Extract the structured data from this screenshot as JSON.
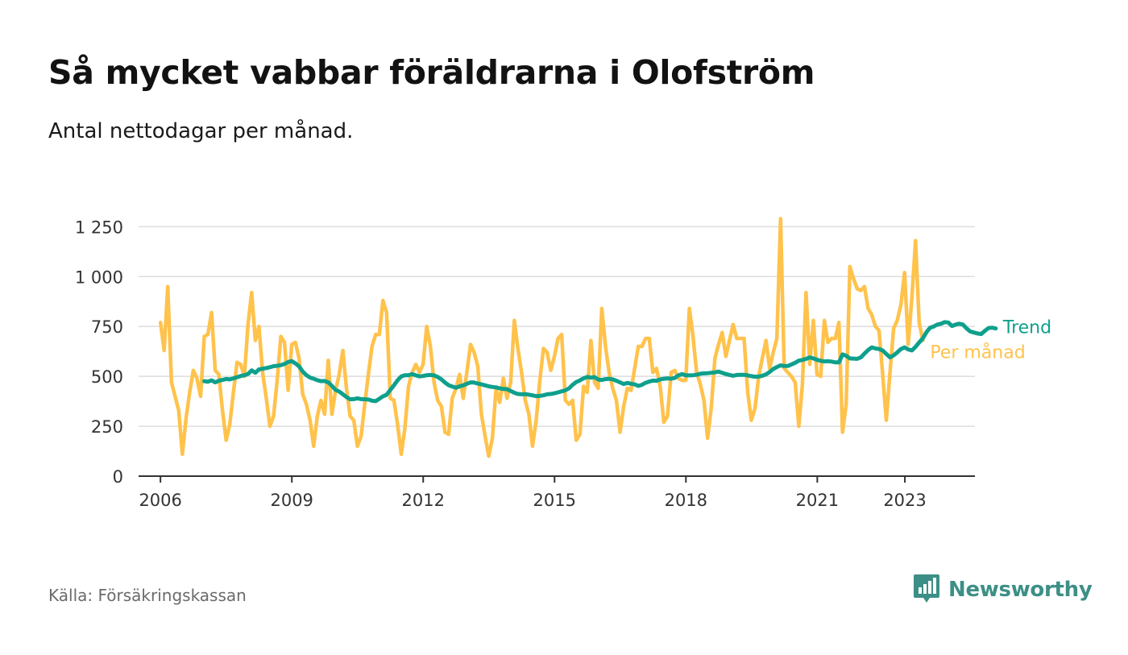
{
  "header": {
    "title": "Så mycket vabbar föräldrarna i Olofström",
    "subtitle": "Antal nettodagar per månad."
  },
  "footer": {
    "source": "Källa: Försäkringskassan",
    "brand": "Newsworthy"
  },
  "colors": {
    "monthly": "#FFC24B",
    "trend": "#0EA08C",
    "grid": "#DDDDDD",
    "axis": "#333333",
    "brand": "#3C8F86"
  },
  "chart_data": {
    "type": "line",
    "title": "Så mycket vabbar föräldrarna i Olofström",
    "subtitle": "Antal nettodagar per månad.",
    "xlabel": "",
    "ylabel": "",
    "xlim": [
      2005.5,
      2024.6
    ],
    "ylim": [
      0,
      1300
    ],
    "x_ticks": [
      {
        "value": 2006,
        "label": "2006"
      },
      {
        "value": 2009,
        "label": "2009"
      },
      {
        "value": 2012,
        "label": "2012"
      },
      {
        "value": 2015,
        "label": "2015"
      },
      {
        "value": 2018,
        "label": "2018"
      },
      {
        "value": 2021,
        "label": "2021"
      },
      {
        "value": 2023,
        "label": "2023"
      }
    ],
    "y_ticks": [
      {
        "value": 0,
        "label": "0"
      },
      {
        "value": 250,
        "label": "250"
      },
      {
        "value": 500,
        "label": "500"
      },
      {
        "value": 750,
        "label": "750"
      },
      {
        "value": 1000,
        "label": "1 000"
      },
      {
        "value": 1250,
        "label": "1 250"
      }
    ],
    "grid": true,
    "legend": "inline-end",
    "series": [
      {
        "name": "Per månad",
        "start": 2006.0,
        "step": 0.0833,
        "values": [
          770,
          630,
          950,
          470,
          400,
          330,
          110,
          290,
          420,
          530,
          490,
          400,
          700,
          710,
          820,
          530,
          510,
          330,
          180,
          260,
          420,
          570,
          560,
          500,
          760,
          920,
          680,
          750,
          520,
          390,
          250,
          300,
          480,
          700,
          670,
          430,
          660,
          670,
          590,
          410,
          360,
          280,
          150,
          300,
          380,
          310,
          580,
          310,
          430,
          510,
          630,
          440,
          300,
          280,
          150,
          200,
          360,
          510,
          650,
          710,
          710,
          880,
          820,
          390,
          380,
          260,
          110,
          240,
          450,
          520,
          560,
          520,
          560,
          750,
          650,
          470,
          380,
          350,
          220,
          210,
          390,
          440,
          510,
          390,
          520,
          660,
          620,
          550,
          310,
          200,
          100,
          190,
          440,
          370,
          490,
          390,
          470,
          780,
          640,
          520,
          380,
          310,
          150,
          280,
          480,
          640,
          620,
          530,
          600,
          690,
          710,
          380,
          360,
          380,
          180,
          210,
          450,
          420,
          680,
          470,
          440,
          840,
          650,
          520,
          440,
          380,
          220,
          350,
          440,
          430,
          540,
          650,
          650,
          690,
          690,
          520,
          540,
          450,
          270,
          300,
          520,
          530,
          490,
          480,
          480,
          840,
          700,
          520,
          460,
          380,
          190,
          340,
          590,
          660,
          720,
          600,
          680,
          760,
          690,
          690,
          690,
          420,
          280,
          340,
          500,
          590,
          680,
          540,
          620,
          690,
          1290,
          540,
          520,
          500,
          470,
          250,
          460,
          920,
          560,
          780,
          510,
          500,
          780,
          670,
          690,
          690,
          770,
          220,
          360,
          1050,
          990,
          940,
          930,
          950,
          840,
          810,
          750,
          730,
          510,
          280,
          520,
          740,
          780,
          860,
          1020,
          660,
          890,
          1180,
          770,
          680
        ]
      },
      {
        "name": "Trend",
        "start": 2007.0,
        "step": 0.0833,
        "values": [
          476,
          473,
          480,
          470,
          478,
          482,
          487,
          485,
          490,
          496,
          502,
          506,
          512,
          530,
          518,
          535,
          538,
          542,
          546,
          551,
          553,
          556,
          562,
          572,
          576,
          565,
          550,
          524,
          506,
          494,
          488,
          481,
          476,
          477,
          470,
          452,
          432,
          424,
          410,
          396,
          385,
          386,
          390,
          386,
          385,
          384,
          378,
          376,
          388,
          400,
          408,
          432,
          455,
          480,
          500,
          506,
          506,
          511,
          505,
          500,
          502,
          506,
          507,
          505,
          497,
          485,
          469,
          456,
          449,
          443,
          450,
          455,
          463,
          470,
          469,
          464,
          460,
          455,
          450,
          447,
          445,
          440,
          437,
          436,
          427,
          418,
          412,
          410,
          411,
          408,
          405,
          401,
          402,
          405,
          410,
          412,
          415,
          420,
          425,
          430,
          440,
          458,
          472,
          480,
          490,
          497,
          494,
          496,
          484,
          482,
          486,
          488,
          485,
          478,
          470,
          462,
          467,
          463,
          460,
          452,
          458,
          468,
          474,
          479,
          478,
          485,
          488,
          490,
          488,
          492,
          505,
          511,
          505,
          505,
          506,
          508,
          513,
          515,
          516,
          518,
          520,
          524,
          518,
          512,
          507,
          503,
          507,
          508,
          508,
          505,
          501,
          498,
          499,
          503,
          510,
          522,
          537,
          547,
          555,
          552,
          552,
          560,
          568,
          579,
          582,
          588,
          595,
          590,
          583,
          578,
          575,
          576,
          574,
          570,
          570,
          610,
          603,
          590,
          589,
          588,
          595,
          614,
          632,
          645,
          640,
          637,
          630,
          612,
          595,
          605,
          620,
          637,
          645,
          635,
          630,
          648,
          670,
          690,
          722,
          744,
          750,
          760,
          764,
          772,
          770,
          752,
          760,
          764,
          760,
          740,
          725,
          720,
          715,
          712,
          728,
          742,
          744,
          740
        ]
      }
    ]
  }
}
